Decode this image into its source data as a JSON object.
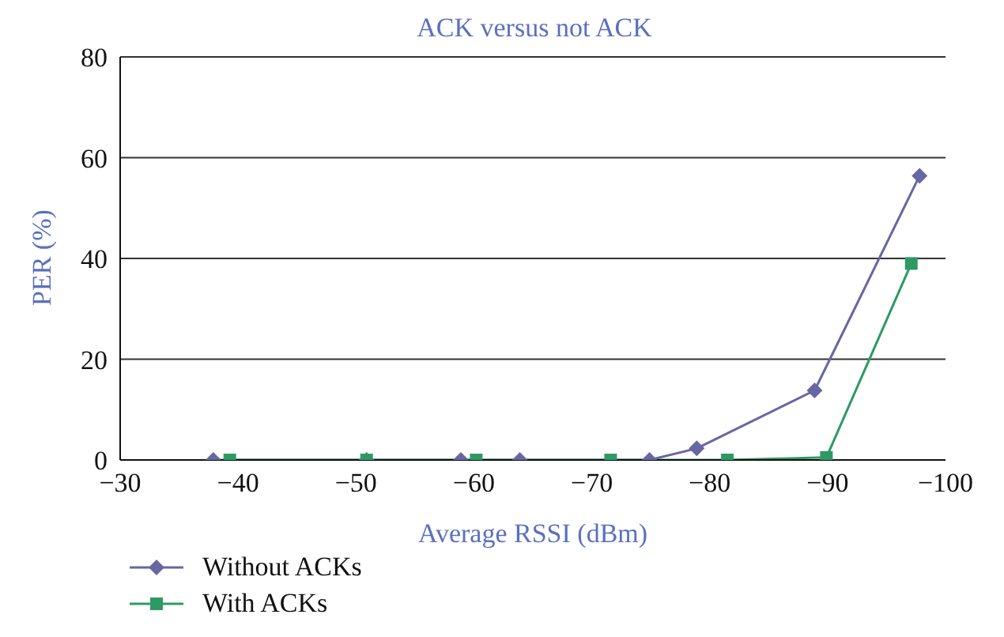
{
  "chart_data": {
    "type": "line",
    "title": "ACK versus not ACK",
    "xlabel": "Average RSSI (dBm)",
    "ylabel": "PER (%)",
    "xlim": [
      -30,
      -100
    ],
    "xticks": [
      {
        "value": -30,
        "label": "−30"
      },
      {
        "value": -40,
        "label": "−40"
      },
      {
        "value": -50,
        "label": "−50"
      },
      {
        "value": -60,
        "label": "−60"
      },
      {
        "value": -70,
        "label": "−70"
      },
      {
        "value": -80,
        "label": "−80"
      },
      {
        "value": -90,
        "label": "−90"
      },
      {
        "value": -100,
        "label": "−100"
      }
    ],
    "ylim": [
      0,
      80
    ],
    "yticks": [
      0,
      20,
      40,
      60,
      80
    ],
    "grid": "y",
    "legend": "bottom left",
    "series": [
      {
        "name": "Without ACKs",
        "color": "#6767a3",
        "marker": "diamond",
        "x": [
          -37.9,
          -50.9,
          -58.9,
          -63.9,
          -74.9,
          -78.9,
          -88.9,
          -97.8
        ],
        "values": [
          0,
          0,
          0,
          0,
          0,
          2.3,
          13.8,
          56.4
        ]
      },
      {
        "name": "With ACKs",
        "color": "#2e9a63",
        "marker": "square",
        "x": [
          -39.3,
          -50.9,
          -60.2,
          -71.6,
          -81.5,
          -89.9,
          -97.1
        ],
        "values": [
          0,
          0,
          0,
          0,
          0,
          0.5,
          39
        ]
      }
    ]
  }
}
